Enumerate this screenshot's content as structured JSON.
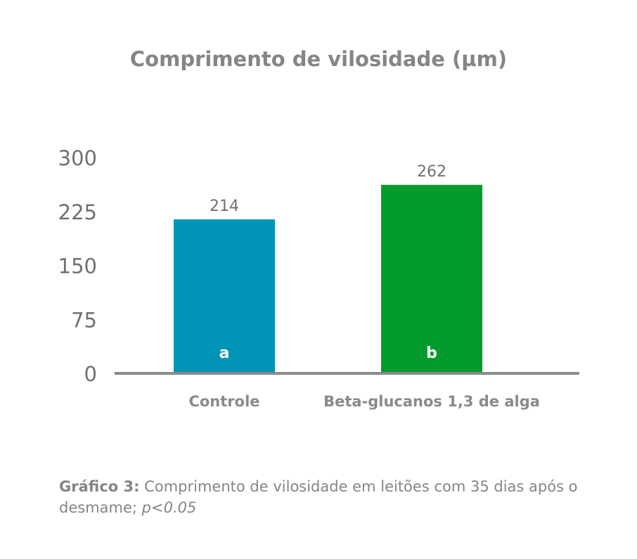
{
  "chart_data": {
    "type": "bar",
    "title": "Comprimento de vilosidade (µm)",
    "categories": [
      "Controle",
      "Beta-glucanos 1,3 de alga"
    ],
    "values": [
      214,
      262
    ],
    "value_labels": [
      "214",
      "262"
    ],
    "significance_letters": [
      "a",
      "b"
    ],
    "colors": [
      "#0095b6",
      "#039b2b"
    ],
    "axis_color": "#8a8a8a",
    "ylim": [
      0,
      300
    ],
    "yticks": [
      0,
      75,
      150,
      225,
      300
    ],
    "xlabel": "",
    "ylabel": ""
  },
  "caption": {
    "label": "Gráfico 3:",
    "text": " Comprimento de vilosidade em leitões com 35 dias após o desmame; ",
    "p_value": "p<0.05"
  }
}
